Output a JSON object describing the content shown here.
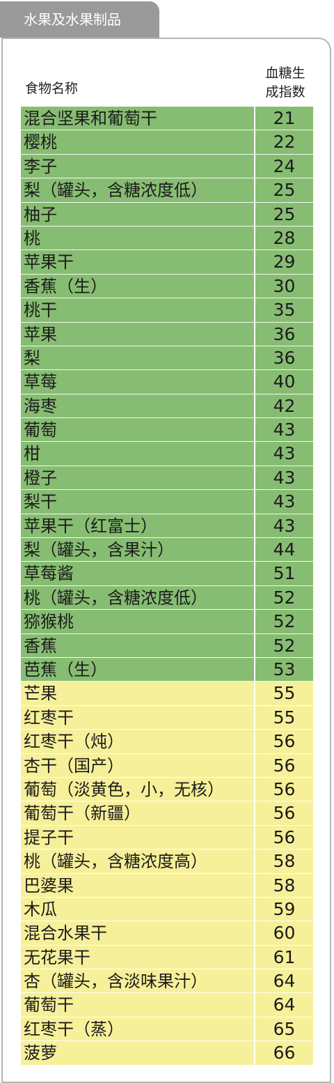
{
  "section_title": "水果及水果制品",
  "columns": {
    "name": "食物名称",
    "index_line1": "血糖生",
    "index_line2": "成指数"
  },
  "colors": {
    "low": "#87bd72",
    "mid": "#f7f09a",
    "tab": "#9a9a9a"
  },
  "rows": [
    {
      "name": "混合坚果和葡萄干",
      "gi": "21",
      "level": "low"
    },
    {
      "name": "樱桃",
      "gi": "22",
      "level": "low"
    },
    {
      "name": "李子",
      "gi": "24",
      "level": "low"
    },
    {
      "name": "梨（罐头，含糖浓度低）",
      "gi": "25",
      "level": "low"
    },
    {
      "name": "柚子",
      "gi": "25",
      "level": "low"
    },
    {
      "name": "桃",
      "gi": "28",
      "level": "low"
    },
    {
      "name": "苹果干",
      "gi": "29",
      "level": "low"
    },
    {
      "name": "香蕉（生）",
      "gi": "30",
      "level": "low"
    },
    {
      "name": "桃干",
      "gi": "35",
      "level": "low"
    },
    {
      "name": "苹果",
      "gi": "36",
      "level": "low"
    },
    {
      "name": "梨",
      "gi": "36",
      "level": "low"
    },
    {
      "name": "草莓",
      "gi": "40",
      "level": "low"
    },
    {
      "name": "海枣",
      "gi": "42",
      "level": "low"
    },
    {
      "name": "葡萄",
      "gi": "43",
      "level": "low"
    },
    {
      "name": "柑",
      "gi": "43",
      "level": "low"
    },
    {
      "name": "橙子",
      "gi": "43",
      "level": "low"
    },
    {
      "name": "梨干",
      "gi": "43",
      "level": "low"
    },
    {
      "name": "苹果干（红富士）",
      "gi": "43",
      "level": "low"
    },
    {
      "name": "梨（罐头，含果汁）",
      "gi": "44",
      "level": "low"
    },
    {
      "name": "草莓酱",
      "gi": "51",
      "level": "low"
    },
    {
      "name": "桃（罐头，含糖浓度低）",
      "gi": "52",
      "level": "low"
    },
    {
      "name": "猕猴桃",
      "gi": "52",
      "level": "low"
    },
    {
      "name": "香蕉",
      "gi": "52",
      "level": "low"
    },
    {
      "name": "芭蕉（生）",
      "gi": "53",
      "level": "low"
    },
    {
      "name": "芒果",
      "gi": "55",
      "level": "mid"
    },
    {
      "name": "红枣干",
      "gi": "55",
      "level": "mid"
    },
    {
      "name": "红枣干（炖）",
      "gi": "56",
      "level": "mid"
    },
    {
      "name": "杏干（国产）",
      "gi": "56",
      "level": "mid"
    },
    {
      "name": "葡萄（淡黄色，小，无核）",
      "gi": "56",
      "level": "mid"
    },
    {
      "name": "葡萄干（新疆）",
      "gi": "56",
      "level": "mid"
    },
    {
      "name": "提子干",
      "gi": "56",
      "level": "mid"
    },
    {
      "name": "桃（罐头，含糖浓度高）",
      "gi": "58",
      "level": "mid"
    },
    {
      "name": "巴婆果",
      "gi": "58",
      "level": "mid"
    },
    {
      "name": "木瓜",
      "gi": "59",
      "level": "mid"
    },
    {
      "name": "混合水果干",
      "gi": "60",
      "level": "mid"
    },
    {
      "name": "无花果干",
      "gi": "61",
      "level": "mid"
    },
    {
      "name": "杏（罐头，含淡味果汁）",
      "gi": "64",
      "level": "mid"
    },
    {
      "name": "葡萄干",
      "gi": "64",
      "level": "mid"
    },
    {
      "name": "红枣干（蒸）",
      "gi": "65",
      "level": "mid"
    },
    {
      "name": "菠萝",
      "gi": "66",
      "level": "mid"
    }
  ]
}
